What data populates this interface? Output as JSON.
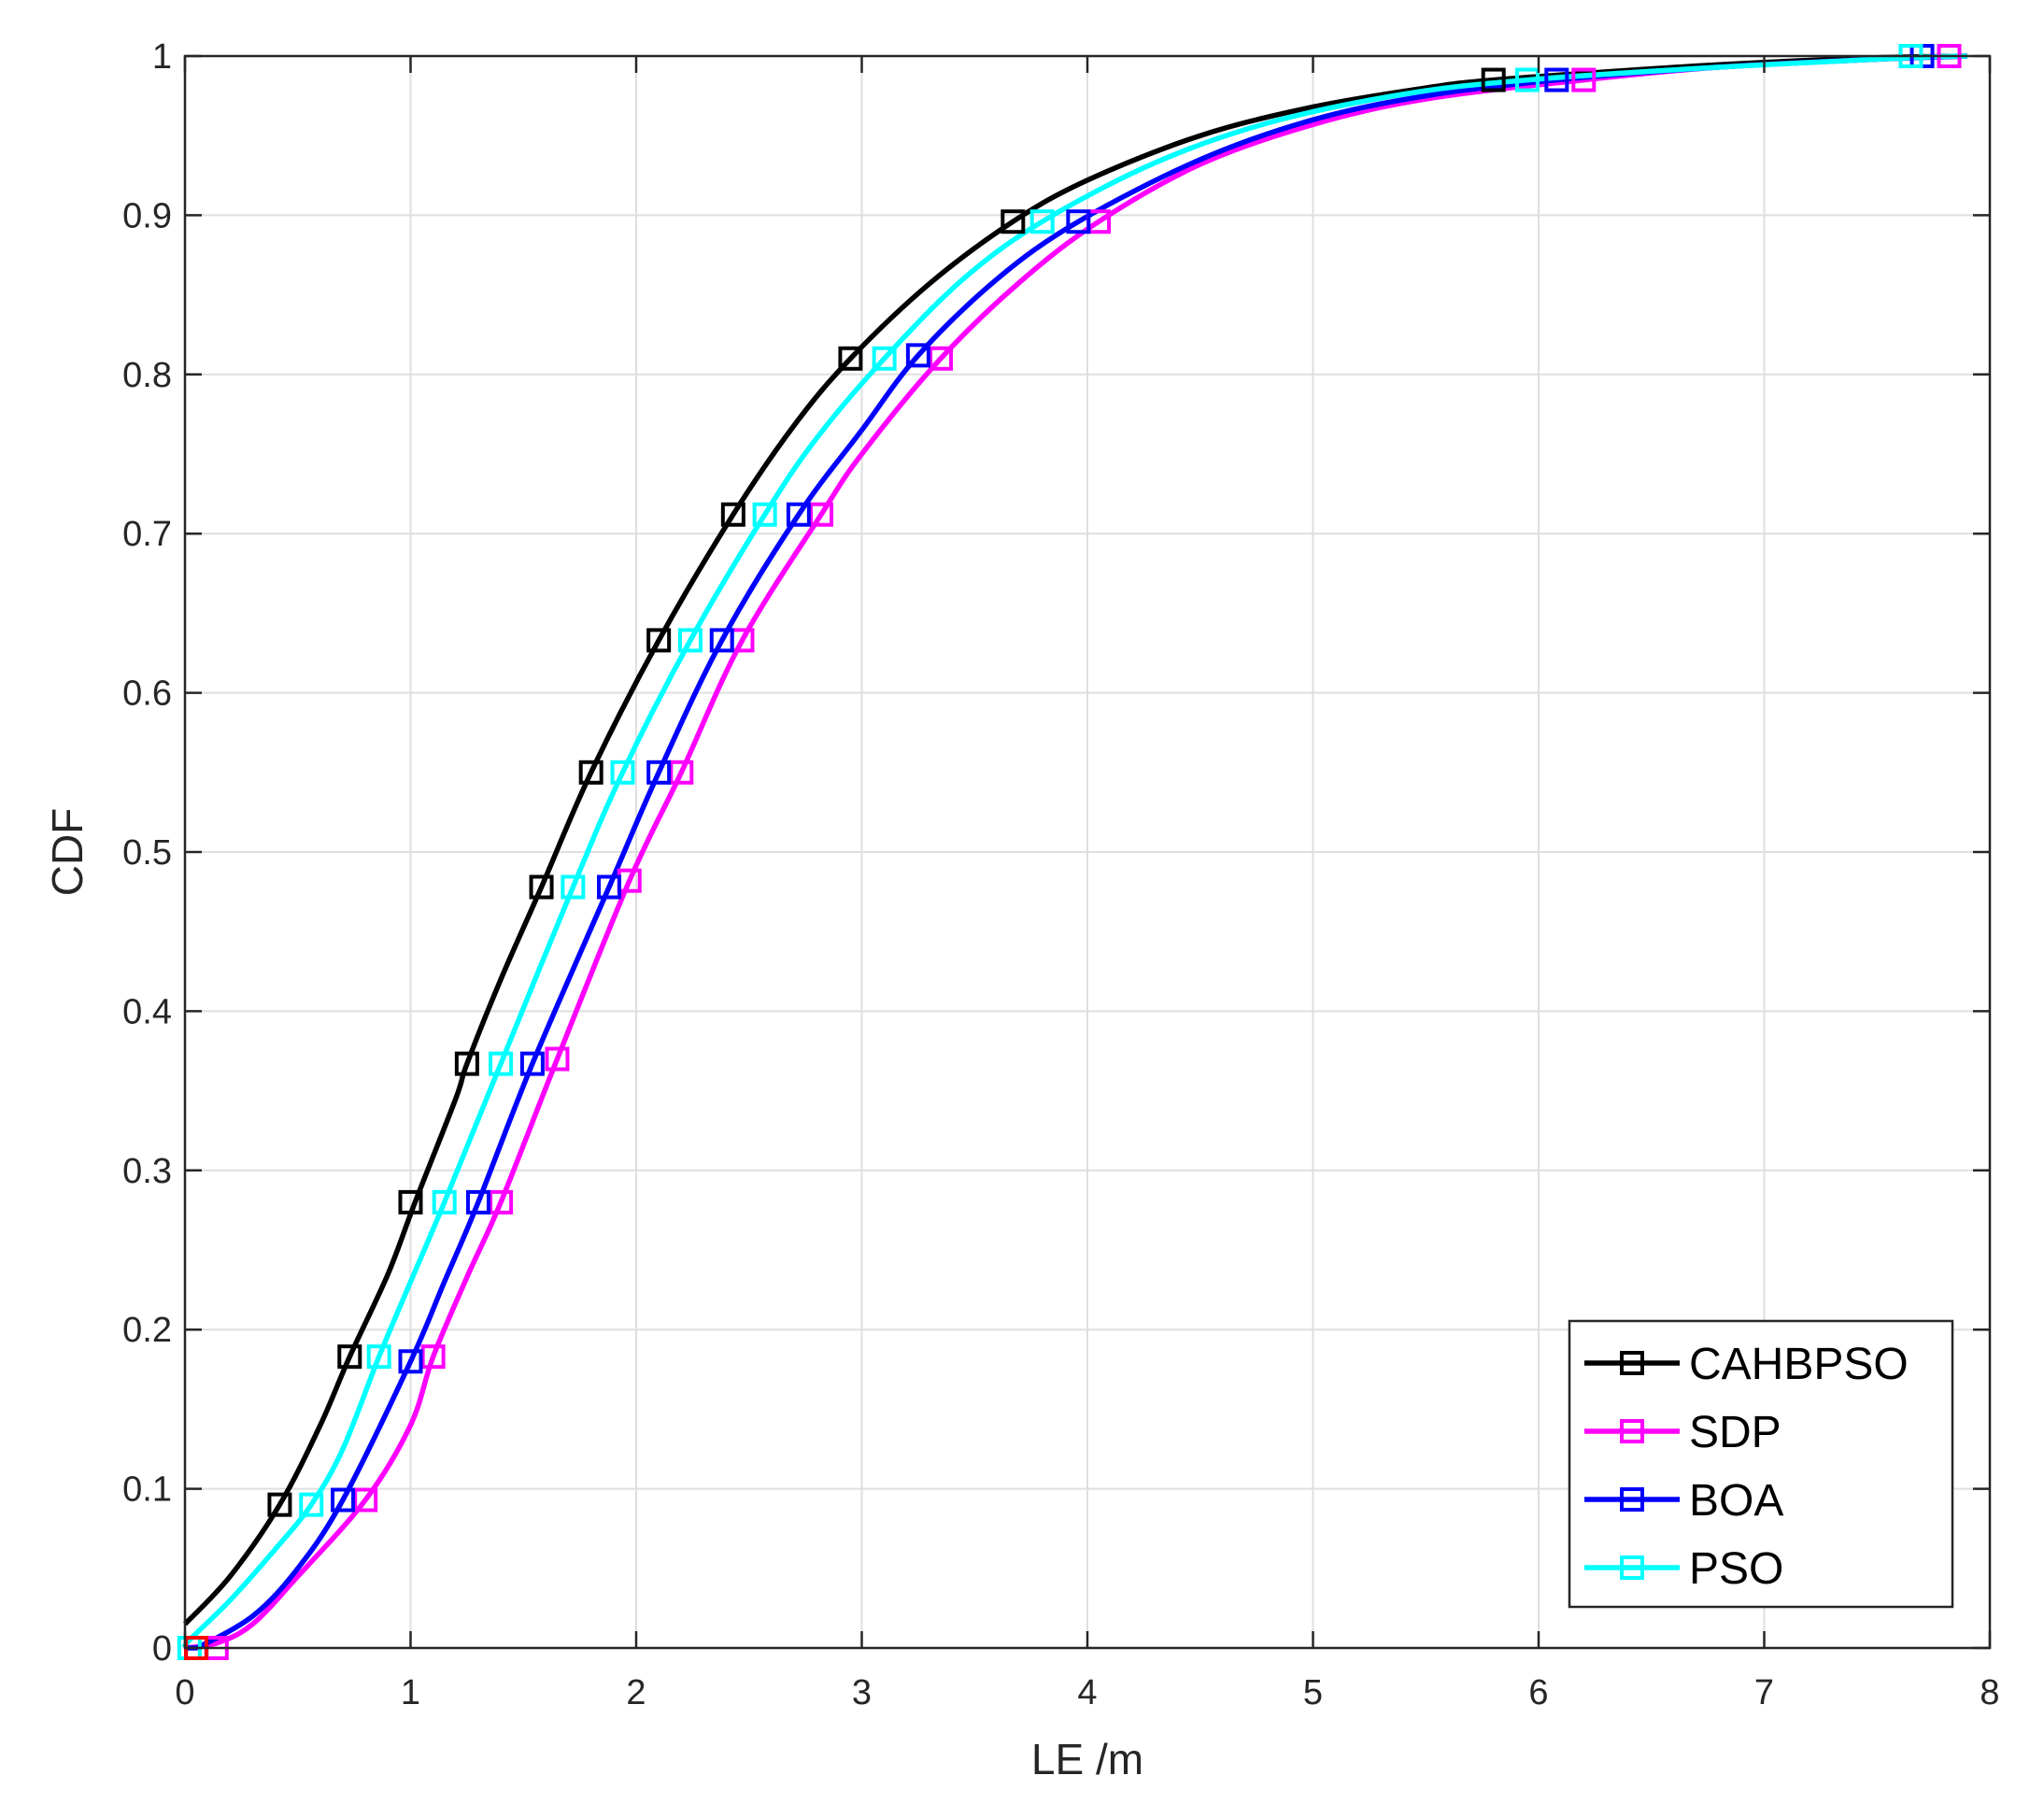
{
  "chart_data": {
    "type": "line",
    "xlabel": "LE /m",
    "ylabel": "CDF",
    "xlim": [
      0,
      8
    ],
    "ylim": [
      0,
      1
    ],
    "xticks": [
      "0",
      "1",
      "2",
      "3",
      "4",
      "5",
      "6",
      "7",
      "8"
    ],
    "yticks": [
      "0",
      "0.1",
      "0.2",
      "0.3",
      "0.4",
      "0.5",
      "0.6",
      "0.7",
      "0.8",
      "0.9",
      "1"
    ],
    "grid": true,
    "legend_position": "bottom-right",
    "marker": "square",
    "series": [
      {
        "name": "CAHBPSO",
        "color": "#000000",
        "x": [
          0.0,
          0.2,
          0.42,
          0.6,
          0.73,
          0.9,
          1.02,
          1.2,
          1.25,
          1.4,
          1.58,
          1.8,
          2.1,
          2.43,
          2.7,
          2.95,
          3.3,
          3.67,
          4.0,
          4.5,
          5.0,
          5.5,
          5.8,
          6.5,
          7.0,
          7.5,
          7.9
        ],
        "y": [
          0.015,
          0.045,
          0.09,
          0.14,
          0.183,
          0.235,
          0.28,
          0.345,
          0.367,
          0.42,
          0.478,
          0.55,
          0.633,
          0.712,
          0.768,
          0.81,
          0.857,
          0.896,
          0.922,
          0.95,
          0.968,
          0.98,
          0.985,
          0.992,
          0.996,
          0.999,
          1.0
        ]
      },
      {
        "name": "SDP",
        "color": "#ff00ff",
        "x": [
          0.0,
          0.14,
          0.3,
          0.5,
          0.8,
          1.0,
          1.1,
          1.25,
          1.4,
          1.65,
          1.97,
          2.2,
          2.47,
          2.82,
          3.0,
          3.35,
          3.7,
          4.05,
          4.5,
          5.0,
          5.5,
          6.2,
          6.8,
          7.5,
          7.9
        ],
        "y": [
          0.0,
          0.003,
          0.015,
          0.045,
          0.093,
          0.14,
          0.183,
          0.233,
          0.28,
          0.37,
          0.482,
          0.55,
          0.633,
          0.712,
          0.75,
          0.81,
          0.858,
          0.896,
          0.932,
          0.957,
          0.973,
          0.985,
          0.993,
          0.998,
          1.0
        ]
      },
      {
        "name": "BOA",
        "color": "#0000ff",
        "x": [
          0.0,
          0.05,
          0.3,
          0.5,
          0.7,
          1.0,
          1.15,
          1.3,
          1.54,
          1.88,
          2.1,
          2.38,
          2.72,
          3.0,
          3.25,
          3.6,
          3.96,
          4.5,
          5.0,
          5.5,
          6.08,
          6.8,
          7.5,
          7.9
        ],
        "y": [
          0.0,
          0.0,
          0.02,
          0.05,
          0.093,
          0.18,
          0.23,
          0.28,
          0.367,
          0.478,
          0.55,
          0.633,
          0.712,
          0.765,
          0.812,
          0.86,
          0.896,
          0.935,
          0.96,
          0.975,
          0.985,
          0.993,
          0.998,
          1.0
        ]
      },
      {
        "name": "PSO",
        "color": "#00ffff",
        "x": [
          0.0,
          0.02,
          0.2,
          0.4,
          0.56,
          0.7,
          0.86,
          1.0,
          1.15,
          1.4,
          1.72,
          1.94,
          2.24,
          2.57,
          2.8,
          3.1,
          3.45,
          3.8,
          4.3,
          4.8,
          5.4,
          5.95,
          6.8,
          7.65,
          7.9
        ],
        "y": [
          0.0,
          0.005,
          0.03,
          0.062,
          0.09,
          0.125,
          0.183,
          0.23,
          0.28,
          0.367,
          0.478,
          0.55,
          0.633,
          0.712,
          0.76,
          0.81,
          0.86,
          0.896,
          0.933,
          0.958,
          0.976,
          0.985,
          0.993,
          0.999,
          1.0
        ]
      }
    ],
    "markers": [
      {
        "series": "CAHBPSO",
        "x": [
          0.05,
          0.42,
          0.73,
          1.0,
          1.25,
          1.58,
          1.8,
          2.1,
          2.43,
          2.95,
          3.67,
          5.8,
          7.65
        ],
        "y": [
          0.0,
          0.09,
          0.183,
          0.28,
          0.367,
          0.478,
          0.55,
          0.633,
          0.712,
          0.81,
          0.896,
          0.985,
          1.0
        ]
      },
      {
        "series": "SDP",
        "x": [
          0.14,
          0.8,
          1.1,
          1.4,
          1.65,
          1.97,
          2.2,
          2.47,
          2.82,
          3.35,
          4.05,
          6.2,
          7.82
        ],
        "y": [
          0.0,
          0.093,
          0.183,
          0.28,
          0.37,
          0.482,
          0.55,
          0.633,
          0.712,
          0.81,
          0.896,
          0.985,
          1.0
        ]
      },
      {
        "series": "BOA",
        "x": [
          0.05,
          0.7,
          1.0,
          1.3,
          1.54,
          1.88,
          2.1,
          2.38,
          2.72,
          3.25,
          3.96,
          6.08,
          7.7
        ],
        "y": [
          0.0,
          0.093,
          0.18,
          0.28,
          0.367,
          0.478,
          0.55,
          0.633,
          0.712,
          0.812,
          0.896,
          0.985,
          1.0
        ]
      },
      {
        "series": "PSO",
        "x": [
          0.02,
          0.56,
          0.86,
          1.15,
          1.4,
          1.72,
          1.94,
          2.24,
          2.57,
          3.1,
          3.8,
          5.95,
          7.65
        ],
        "y": [
          0.0,
          0.09,
          0.183,
          0.28,
          0.367,
          0.478,
          0.55,
          0.633,
          0.712,
          0.81,
          0.896,
          0.985,
          1.0
        ]
      }
    ]
  }
}
